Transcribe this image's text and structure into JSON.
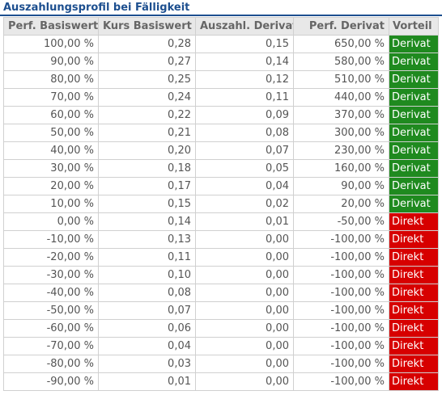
{
  "title": "Auszahlungsprofil bei Fälligkeit",
  "colors": {
    "title": "#1d4f8f",
    "derivat": "#1f8a1f",
    "direkt": "#d70000",
    "header_bg": "#e8e8e8"
  },
  "table": {
    "headers": [
      "Perf. Basiswert",
      "Kurs Basiswert",
      "Auszahl. Derivat",
      "Perf. Derivat",
      "Vorteil"
    ],
    "rows": [
      [
        "100,00 %",
        "0,28",
        "0,15",
        "650,00 %",
        "Derivat"
      ],
      [
        "90,00 %",
        "0,27",
        "0,14",
        "580,00 %",
        "Derivat"
      ],
      [
        "80,00 %",
        "0,25",
        "0,12",
        "510,00 %",
        "Derivat"
      ],
      [
        "70,00 %",
        "0,24",
        "0,11",
        "440,00 %",
        "Derivat"
      ],
      [
        "60,00 %",
        "0,22",
        "0,09",
        "370,00 %",
        "Derivat"
      ],
      [
        "50,00 %",
        "0,21",
        "0,08",
        "300,00 %",
        "Derivat"
      ],
      [
        "40,00 %",
        "0,20",
        "0,07",
        "230,00 %",
        "Derivat"
      ],
      [
        "30,00 %",
        "0,18",
        "0,05",
        "160,00 %",
        "Derivat"
      ],
      [
        "20,00 %",
        "0,17",
        "0,04",
        "90,00 %",
        "Derivat"
      ],
      [
        "10,00 %",
        "0,15",
        "0,02",
        "20,00 %",
        "Derivat"
      ],
      [
        "0,00 %",
        "0,14",
        "0,01",
        "-50,00 %",
        "Direkt"
      ],
      [
        "-10,00 %",
        "0,13",
        "0,00",
        "-100,00 %",
        "Direkt"
      ],
      [
        "-20,00 %",
        "0,11",
        "0,00",
        "-100,00 %",
        "Direkt"
      ],
      [
        "-30,00 %",
        "0,10",
        "0,00",
        "-100,00 %",
        "Direkt"
      ],
      [
        "-40,00 %",
        "0,08",
        "0,00",
        "-100,00 %",
        "Direkt"
      ],
      [
        "-50,00 %",
        "0,07",
        "0,00",
        "-100,00 %",
        "Direkt"
      ],
      [
        "-60,00 %",
        "0,06",
        "0,00",
        "-100,00 %",
        "Direkt"
      ],
      [
        "-70,00 %",
        "0,04",
        "0,00",
        "-100,00 %",
        "Direkt"
      ],
      [
        "-80,00 %",
        "0,03",
        "0,00",
        "-100,00 %",
        "Direkt"
      ],
      [
        "-90,00 %",
        "0,01",
        "0,00",
        "-100,00 %",
        "Direkt"
      ]
    ]
  }
}
